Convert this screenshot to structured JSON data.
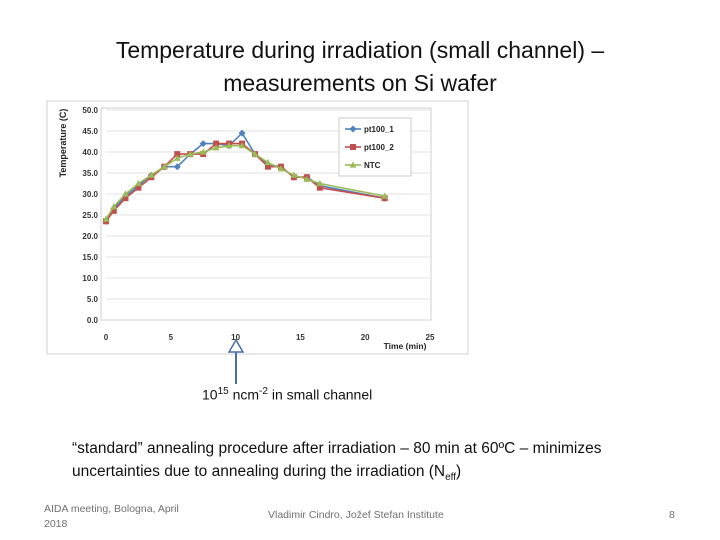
{
  "slide": {
    "title_line1": "Temperature during irradiation (small channel) –",
    "title_line2": "measurements on Si wafer",
    "fluence": {
      "base": "10",
      "exp": "15",
      "unit": "ncm",
      "unit_exp": "-2",
      "rest": "in small channel"
    },
    "body": {
      "line1": "“standard” annealing procedure after irradiation  – 80 min at 60ºC – minimizes",
      "line2_a": "uncertainties  due to annealing during the irradiation (N",
      "line2_sub": "eff",
      "line2_b": ")"
    },
    "footer": {
      "left": "AIDA meeting, Bologna, April 2018",
      "center": "Vladimir Cindro, Jožef Stefan Institute",
      "page": "8"
    }
  },
  "chart_data": {
    "type": "line",
    "title": "",
    "xlabel": "Time (min)",
    "ylabel": "Temperature (C)",
    "xlim": [
      0,
      25
    ],
    "ylim": [
      0,
      50
    ],
    "xticks": [
      "0",
      "5",
      "10",
      "15",
      "20",
      "25"
    ],
    "yticks": [
      "0.0",
      "5.0",
      "10.0",
      "15.0",
      "20.0",
      "25.0",
      "30.0",
      "35.0",
      "40.0",
      "45.0",
      "50.0"
    ],
    "grid": true,
    "legend": "top-right",
    "series": [
      {
        "name": "pt100_1",
        "color": "#4f81bd",
        "marker": "diamond",
        "x": [
          0,
          0.6,
          1.5,
          2.5,
          3.5,
          4.5,
          5.5,
          6.5,
          7.5,
          8.5,
          9.5,
          10.5,
          11.5,
          12.5,
          13.5,
          14.5,
          15.5,
          16.5,
          21.5
        ],
        "y": [
          23.5,
          26.5,
          29.5,
          32.0,
          34.5,
          36.5,
          36.5,
          39.5,
          42.0,
          42.0,
          41.5,
          44.5,
          39.5,
          37.0,
          36.5,
          34.0,
          34.0,
          32.0,
          29.0
        ]
      },
      {
        "name": "pt100_2",
        "color": "#c0504d",
        "marker": "square",
        "x": [
          0,
          0.6,
          1.5,
          2.5,
          3.5,
          4.5,
          5.5,
          6.5,
          7.5,
          8.5,
          9.5,
          10.5,
          11.5,
          12.5,
          13.5,
          14.5,
          15.5,
          16.5,
          21.5
        ],
        "y": [
          23.5,
          26.0,
          29.0,
          31.5,
          34.0,
          36.5,
          39.5,
          39.5,
          39.5,
          42.0,
          42.0,
          42.0,
          39.5,
          36.5,
          36.5,
          34.0,
          34.0,
          31.5,
          29.0
        ]
      },
      {
        "name": "NTC",
        "color": "#9bbb59",
        "marker": "triangle",
        "x": [
          0,
          0.6,
          1.5,
          2.5,
          3.5,
          4.5,
          5.5,
          6.5,
          7.5,
          8.5,
          9.5,
          10.5,
          11.5,
          12.5,
          13.5,
          14.5,
          15.5,
          16.5,
          21.5
        ],
        "y": [
          24.0,
          27.0,
          30.0,
          32.5,
          34.5,
          36.5,
          38.5,
          39.5,
          40.0,
          41.0,
          41.5,
          41.5,
          39.5,
          37.5,
          36.0,
          34.5,
          33.5,
          32.5,
          29.5
        ]
      }
    ],
    "annotation_arrow_x": 10
  }
}
